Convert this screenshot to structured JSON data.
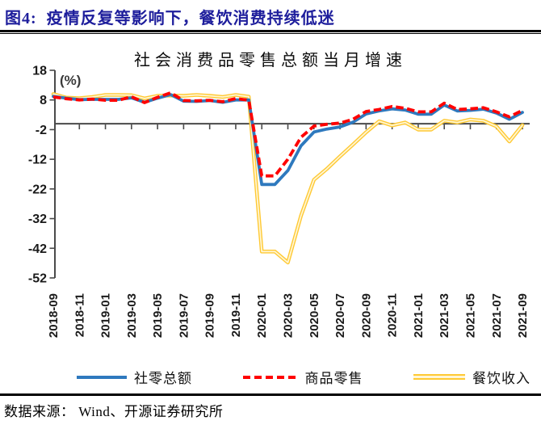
{
  "header": {
    "title": "图4:  疫情反复等影响下，餐饮消费持续低迷"
  },
  "chart_data": {
    "type": "line",
    "title": "社会消费品零售总额当月增速",
    "unit_label": "(%)",
    "grid": false,
    "legend_position": "bottom",
    "ylim": [
      -52,
      18
    ],
    "yticks": [
      18,
      8,
      -2,
      -12,
      -22,
      -32,
      -42,
      -52
    ],
    "x_label_interval": 2,
    "axis_color": "#4a4a4a",
    "tick_label_color": "#1a1a1a",
    "x": [
      "2018-09",
      "2018-10",
      "2018-11",
      "2018-12",
      "2019-01",
      "2019-02",
      "2019-03",
      "2019-04",
      "2019-05",
      "2019-06",
      "2019-07",
      "2019-08",
      "2019-09",
      "2019-10",
      "2019-11",
      "2019-12",
      "2020-01",
      "2020-02",
      "2020-03",
      "2020-04",
      "2020-05",
      "2020-06",
      "2020-07",
      "2020-08",
      "2020-09",
      "2020-10",
      "2020-11",
      "2020-12",
      "2021-01",
      "2021-02",
      "2021-03",
      "2021-04",
      "2021-05",
      "2021-06",
      "2021-07",
      "2021-08",
      "2021-09"
    ],
    "series": [
      {
        "name": "社零总额",
        "style": "solid",
        "color": "#2E79BE",
        "z": 1,
        "values": [
          9.2,
          8.6,
          8.1,
          8.2,
          8.2,
          8.2,
          8.7,
          7.2,
          8.6,
          9.8,
          7.6,
          7.5,
          7.8,
          7.2,
          8.0,
          8.0,
          -20.5,
          -20.5,
          -15.8,
          -7.5,
          -2.8,
          -1.8,
          -1.1,
          0.5,
          3.3,
          4.3,
          5.0,
          4.6,
          3.2,
          3.2,
          6.3,
          4.3,
          4.5,
          4.9,
          3.6,
          1.5,
          3.8
        ]
      },
      {
        "name": "商品零售",
        "style": "dashed",
        "color": "#FF0000",
        "z": 2,
        "values": [
          9.0,
          8.4,
          8.0,
          8.3,
          7.9,
          7.9,
          9.1,
          7.1,
          8.9,
          10.4,
          7.8,
          7.7,
          7.9,
          7.4,
          8.5,
          7.9,
          -17.6,
          -17.6,
          -12.0,
          -4.6,
          -0.8,
          -0.2,
          0.2,
          1.5,
          4.1,
          4.8,
          5.8,
          5.2,
          4.0,
          4.0,
          6.9,
          4.8,
          5.0,
          5.4,
          4.0,
          2.3,
          4.5
        ]
      },
      {
        "name": "餐饮收入",
        "style": "double",
        "color": "#FFC933",
        "inner_color": "#FFF6D5",
        "z": 0,
        "values": [
          10.0,
          8.8,
          8.6,
          9.0,
          9.7,
          9.7,
          9.6,
          8.5,
          9.4,
          9.5,
          9.4,
          9.7,
          9.4,
          9.0,
          9.7,
          9.1,
          -43.1,
          -43.1,
          -46.8,
          -31.1,
          -18.9,
          -15.2,
          -11.0,
          -7.0,
          -2.9,
          0.8,
          -0.6,
          0.4,
          -2.0,
          -2.0,
          1.0,
          0.4,
          1.4,
          1.0,
          -0.9,
          -6.0,
          -0.5
        ]
      }
    ]
  },
  "footer": {
    "source": "数据来源： Wind、开源证券研究所"
  },
  "colors": {
    "header_text": "#1E1E9C",
    "rule": "#000000"
  }
}
